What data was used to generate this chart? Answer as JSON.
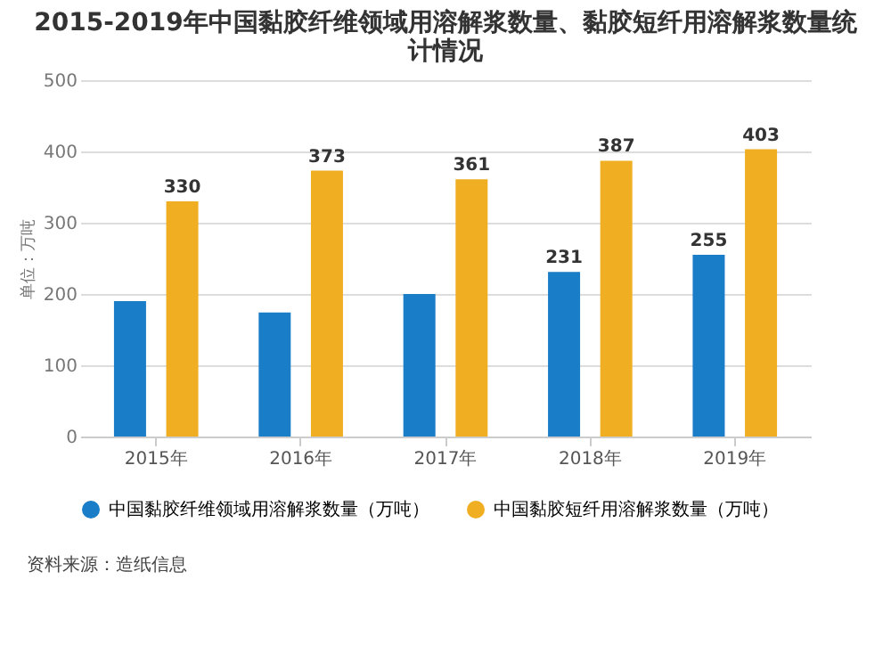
{
  "chart_data": {
    "type": "bar",
    "title": "2015-2019年中国黏胶纤维领域用溶解浆数量、黏胶短纤用溶解浆数量统计情况",
    "ylabel": "单位：万吨",
    "categories": [
      "2015年",
      "2016年",
      "2017年",
      "2018年",
      "2019年"
    ],
    "series": [
      {
        "name": "中国黏胶纤维领域用溶解浆数量（万吨）",
        "color": "#1a7dc8",
        "values": [
          190,
          174,
          200,
          231,
          255
        ],
        "value_labels": [
          null,
          null,
          null,
          "231",
          "255"
        ]
      },
      {
        "name": "中国黏胶短纤用溶解浆数量（万吨）",
        "color": "#f0ae23",
        "values": [
          330,
          373,
          361,
          387,
          403
        ],
        "value_labels": [
          "330",
          "373",
          "361",
          "387",
          "403"
        ]
      }
    ],
    "ylim": [
      0,
      500
    ],
    "yticks": [
      0,
      100,
      200,
      300,
      400,
      500
    ],
    "grid": "y",
    "legend": "bottom",
    "annotations": [
      "资料来源：造纸信息"
    ]
  }
}
